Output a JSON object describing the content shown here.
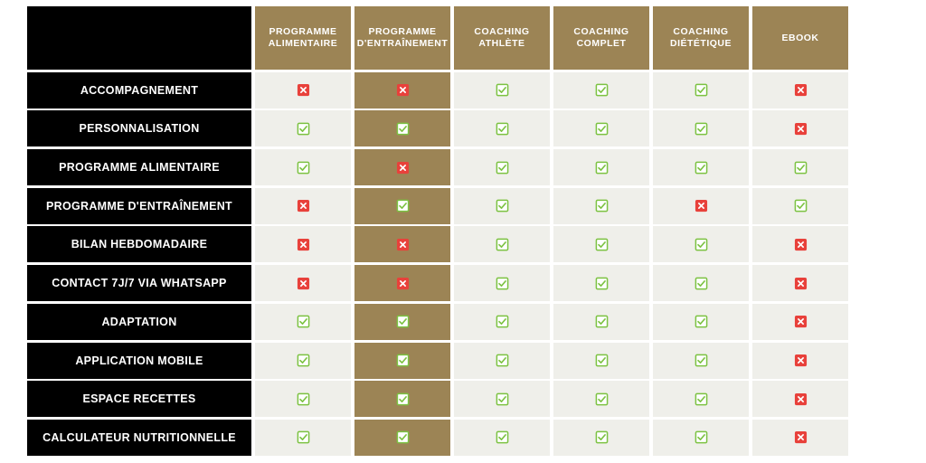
{
  "colors": {
    "gold": "#9c8455",
    "check": "#7cc242",
    "cross": "#e8413b",
    "row_bg": "#efefea",
    "label_bg": "#000000"
  },
  "columns": [
    "PROGRAMME ALIMENTAIRE",
    "PROGRAMME D'ENTRAÎNEMENT",
    "COACHING ATHLÈTE",
    "COACHING COMPLET",
    "COACHING DIÉTÉTIQUE",
    "EBOOK"
  ],
  "rows": [
    {
      "label": "ACCOMPAGNEMENT",
      "values": [
        "cross",
        "cross",
        "check",
        "check",
        "check",
        "cross"
      ]
    },
    {
      "label": "PERSONNALISATION",
      "values": [
        "check",
        "check",
        "check",
        "check",
        "check",
        "cross"
      ]
    },
    {
      "label": "PROGRAMME ALIMENTAIRE",
      "values": [
        "check",
        "cross",
        "check",
        "check",
        "check",
        "check"
      ]
    },
    {
      "label": "PROGRAMME D'ENTRAÎNEMENT",
      "values": [
        "cross",
        "check",
        "check",
        "check",
        "cross",
        "check"
      ]
    },
    {
      "label": "BILAN HEBDOMADAIRE",
      "values": [
        "cross",
        "cross",
        "check",
        "check",
        "check",
        "cross"
      ]
    },
    {
      "label": "CONTACT 7J/7 VIA WHATSAPP",
      "values": [
        "cross",
        "cross",
        "check",
        "check",
        "check",
        "cross"
      ]
    },
    {
      "label": "ADAPTATION",
      "values": [
        "check",
        "check",
        "check",
        "check",
        "check",
        "cross"
      ]
    },
    {
      "label": "APPLICATION MOBILE",
      "values": [
        "check",
        "check",
        "check",
        "check",
        "check",
        "cross"
      ]
    },
    {
      "label": "ESPACE RECETTES",
      "values": [
        "check",
        "check",
        "check",
        "check",
        "check",
        "cross"
      ]
    },
    {
      "label": "CALCULATEUR NUTRITIONNELLE",
      "values": [
        "check",
        "check",
        "check",
        "check",
        "check",
        "cross"
      ]
    }
  ]
}
